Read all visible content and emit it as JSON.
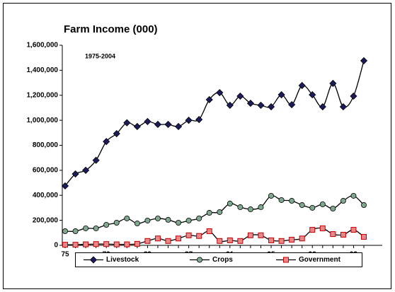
{
  "chart_data": {
    "type": "line",
    "title": "Farm Income (000)",
    "annotation": "1975-2004",
    "categories": [
      "75",
      null,
      null,
      null,
      "79",
      null,
      null,
      null,
      "83",
      null,
      null,
      null,
      "87",
      null,
      null,
      null,
      "91",
      null,
      null,
      null,
      "95",
      null,
      null,
      null,
      "99",
      null,
      null,
      null,
      "03",
      null
    ],
    "ylim": [
      0,
      1600000
    ],
    "yticks": [
      0,
      {
        "value": 200000,
        "label": "200,000"
      },
      {
        "value": 400000,
        "label": "400,000"
      },
      {
        "value": 600000,
        "label": "600,000"
      },
      {
        "value": 800000,
        "label": "800,000"
      },
      {
        "value": 1000000,
        "label": "1,000,000"
      },
      {
        "value": 1200000,
        "label": "1,200,000"
      },
      {
        "value": 1400000,
        "label": "1,400,000"
      },
      {
        "value": 1600000,
        "label": "1,600,000"
      }
    ],
    "grid": false,
    "legend": "bottom",
    "series": [
      {
        "name": "Livestock",
        "color": "#1c1c5c",
        "marker": "diamond",
        "values": [
          475000,
          571000,
          600000,
          680000,
          830000,
          893000,
          980000,
          950000,
          990000,
          967000,
          967000,
          950000,
          1000000,
          1006000,
          1165000,
          1221000,
          1120000,
          1193000,
          1136000,
          1120000,
          1108000,
          1204000,
          1125000,
          1278000,
          1204000,
          1108000,
          1295000,
          1108000,
          1193000,
          1476000
        ]
      },
      {
        "name": "Crops",
        "color": "#7fa88f",
        "marker": "circle",
        "values": [
          113000,
          113000,
          136000,
          136000,
          164000,
          181000,
          215000,
          175000,
          198000,
          215000,
          204000,
          181000,
          198000,
          215000,
          260000,
          266000,
          334000,
          305000,
          288000,
          305000,
          396000,
          362000,
          356000,
          322000,
          300000,
          328000,
          294000,
          356000,
          396000,
          322000
        ]
      },
      {
        "name": "Government",
        "color": "#e8888a",
        "marker": "square",
        "values": [
          5000,
          5000,
          8000,
          10000,
          10000,
          8000,
          8000,
          12000,
          35000,
          55000,
          35000,
          55000,
          80000,
          75000,
          113000,
          35000,
          40000,
          35000,
          80000,
          80000,
          40000,
          35000,
          45000,
          55000,
          124000,
          136000,
          90000,
          85000,
          124000,
          68000
        ]
      }
    ]
  }
}
